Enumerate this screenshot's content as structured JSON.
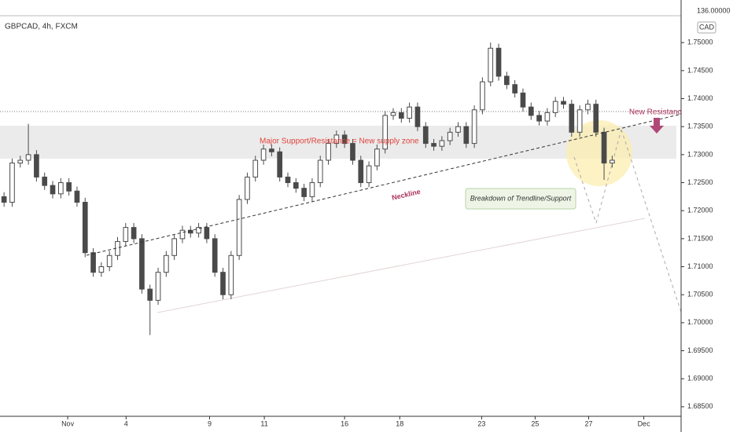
{
  "chart_data": {
    "type": "candlestick",
    "title": "GBPCAD, 4h, FXCM",
    "currency": "CAD",
    "upper_pane_label": "136.00000",
    "annotations": [
      "Major Support/Resistance = New supply zone",
      "Neckline",
      "Breakdown of Trendline/Support",
      "New Resistance"
    ],
    "up_color": "#ffffff",
    "down_color": "#4a4a4a",
    "wick_color": "#4a4a4a",
    "xlim": [
      0,
      168
    ],
    "ylim": [
      1.6833,
      1.7576
    ],
    "xticks": [
      {
        "value": 16.7,
        "label": "Nov"
      },
      {
        "value": 31.1,
        "label": "4"
      },
      {
        "value": 51.7,
        "label": "9"
      },
      {
        "value": 65.2,
        "label": "11"
      },
      {
        "value": 85,
        "label": "16"
      },
      {
        "value": 98.6,
        "label": "18"
      },
      {
        "value": 118.8,
        "label": "23"
      },
      {
        "value": 132,
        "label": "25"
      },
      {
        "value": 145.2,
        "label": "27"
      },
      {
        "value": 158.8,
        "label": "Dec"
      }
    ],
    "yticks": [
      {
        "value": 1.685,
        "label": "1.68500"
      },
      {
        "value": 1.69,
        "label": "1.69000"
      },
      {
        "value": 1.695,
        "label": "1.69500"
      },
      {
        "value": 1.7,
        "label": "1.70000"
      },
      {
        "value": 1.705,
        "label": "1.70500"
      },
      {
        "value": 1.71,
        "label": "1.71000"
      },
      {
        "value": 1.715,
        "label": "1.71500"
      },
      {
        "value": 1.72,
        "label": "1.72000"
      },
      {
        "value": 1.725,
        "label": "1.72500"
      },
      {
        "value": 1.73,
        "label": "1.73000"
      },
      {
        "value": 1.735,
        "label": "1.73500"
      },
      {
        "value": 1.74,
        "label": "1.74000"
      },
      {
        "value": 1.745,
        "label": "1.74500"
      },
      {
        "value": 1.75,
        "label": "1.75000"
      }
    ],
    "x": [
      1,
      3,
      5,
      7,
      9,
      11,
      13,
      15,
      17,
      19,
      21,
      23,
      25,
      27,
      29,
      31,
      33,
      35,
      37,
      39,
      41,
      43,
      45,
      47,
      49,
      51,
      53,
      55,
      57,
      59,
      61,
      63,
      65,
      67,
      69,
      71,
      73,
      75,
      77,
      79,
      81,
      83,
      85,
      87,
      89,
      91,
      93,
      95,
      97,
      99,
      101,
      103,
      105,
      107,
      109,
      111,
      113,
      115,
      117,
      119,
      121,
      123,
      125,
      127,
      129,
      131,
      133,
      135,
      137,
      139,
      141,
      143,
      145,
      147,
      149,
      151
    ],
    "open": [
      1.7225,
      1.7215,
      1.7285,
      1.729,
      1.73,
      1.726,
      1.7245,
      1.723,
      1.725,
      1.7235,
      1.7215,
      1.7125,
      1.709,
      1.71,
      1.712,
      1.7145,
      1.717,
      1.715,
      1.706,
      1.704,
      1.709,
      1.712,
      1.715,
      1.7165,
      1.716,
      1.717,
      1.715,
      1.709,
      1.705,
      1.712,
      1.722,
      1.726,
      1.729,
      1.731,
      1.7305,
      1.726,
      1.725,
      1.724,
      1.7225,
      1.725,
      1.729,
      1.732,
      1.7335,
      1.732,
      1.729,
      1.725,
      1.728,
      1.731,
      1.737,
      1.7375,
      1.7365,
      1.7385,
      1.735,
      1.732,
      1.7315,
      1.7325,
      1.734,
      1.735,
      1.732,
      1.738,
      1.743,
      1.749,
      1.744,
      1.7425,
      1.741,
      1.7385,
      1.737,
      1.736,
      1.7375,
      1.7395,
      1.739,
      1.734,
      1.738,
      1.739,
      1.734,
      1.7285
    ],
    "high": [
      1.7233,
      1.7293,
      1.7298,
      1.7355,
      1.7308,
      1.7268,
      1.7253,
      1.7258,
      1.7258,
      1.7243,
      1.7223,
      1.7133,
      1.7108,
      1.7128,
      1.7153,
      1.7178,
      1.7178,
      1.7158,
      1.7068,
      1.7098,
      1.7128,
      1.7158,
      1.7173,
      1.7173,
      1.7178,
      1.7178,
      1.7158,
      1.7098,
      1.7128,
      1.7228,
      1.7268,
      1.7298,
      1.7318,
      1.7318,
      1.7313,
      1.7268,
      1.7258,
      1.7248,
      1.7258,
      1.7298,
      1.7328,
      1.7343,
      1.7343,
      1.7328,
      1.7298,
      1.7288,
      1.7318,
      1.7378,
      1.7383,
      1.7383,
      1.7393,
      1.7393,
      1.7358,
      1.7328,
      1.7333,
      1.7348,
      1.7358,
      1.7358,
      1.7388,
      1.7438,
      1.75,
      1.7498,
      1.7448,
      1.7433,
      1.7418,
      1.7393,
      1.7378,
      1.7383,
      1.7403,
      1.7403,
      1.7398,
      1.7388,
      1.7398,
      1.7398,
      1.7348,
      1.7298
    ],
    "low": [
      1.7207,
      1.7207,
      1.7277,
      1.7282,
      1.7252,
      1.7237,
      1.7222,
      1.7222,
      1.7227,
      1.7207,
      1.7117,
      1.7082,
      1.7082,
      1.7092,
      1.7112,
      1.7137,
      1.7142,
      1.7052,
      1.6978,
      1.7032,
      1.7082,
      1.7112,
      1.7142,
      1.7152,
      1.7152,
      1.7142,
      1.7082,
      1.7042,
      1.7042,
      1.7112,
      1.7212,
      1.7252,
      1.7282,
      1.7297,
      1.7252,
      1.7242,
      1.7232,
      1.7217,
      1.7217,
      1.7242,
      1.7282,
      1.7312,
      1.7312,
      1.7282,
      1.7242,
      1.7242,
      1.7272,
      1.7302,
      1.7362,
      1.7357,
      1.7357,
      1.7342,
      1.7312,
      1.7307,
      1.7307,
      1.7317,
      1.7332,
      1.7312,
      1.7312,
      1.7372,
      1.7422,
      1.7432,
      1.7417,
      1.7402,
      1.7377,
      1.7362,
      1.7352,
      1.7352,
      1.7367,
      1.7382,
      1.7332,
      1.7332,
      1.7372,
      1.7332,
      1.7255,
      1.7277
    ],
    "close": [
      1.7215,
      1.7285,
      1.729,
      1.73,
      1.726,
      1.7245,
      1.723,
      1.725,
      1.7235,
      1.7215,
      1.7125,
      1.709,
      1.71,
      1.712,
      1.7145,
      1.717,
      1.715,
      1.706,
      1.704,
      1.709,
      1.712,
      1.715,
      1.7165,
      1.716,
      1.717,
      1.715,
      1.709,
      1.705,
      1.712,
      1.722,
      1.726,
      1.729,
      1.731,
      1.7305,
      1.726,
      1.725,
      1.724,
      1.7225,
      1.725,
      1.729,
      1.732,
      1.7335,
      1.732,
      1.729,
      1.725,
      1.728,
      1.731,
      1.737,
      1.7375,
      1.7365,
      1.7385,
      1.735,
      1.732,
      1.7315,
      1.7325,
      1.734,
      1.735,
      1.732,
      1.738,
      1.743,
      1.749,
      1.744,
      1.7425,
      1.741,
      1.7385,
      1.737,
      1.736,
      1.7375,
      1.7395,
      1.739,
      1.734,
      1.738,
      1.739,
      1.734,
      1.7285,
      1.729
    ]
  }
}
